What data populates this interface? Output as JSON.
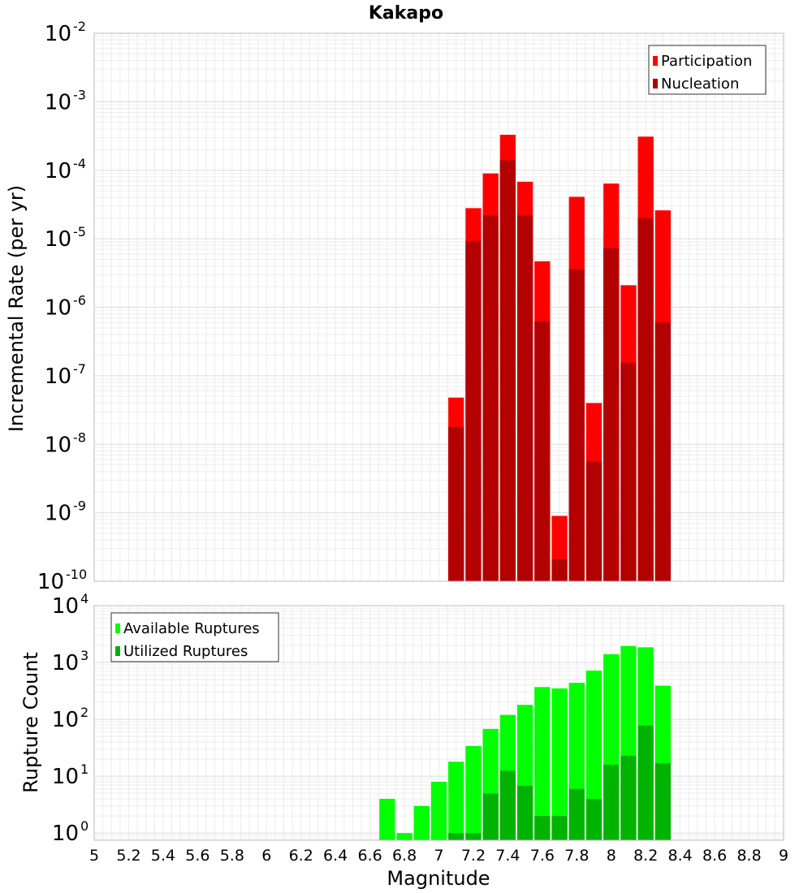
{
  "chart_data": [
    {
      "type": "bar",
      "title": "Kakapo",
      "xlabel": "",
      "ylabel": "Incremental Rate (per yr)",
      "yscale": "log",
      "ylim": [
        1e-10,
        0.01
      ],
      "xlim": [
        5,
        9
      ],
      "grid": true,
      "legend_position": "top-right",
      "x": [
        7.1,
        7.2,
        7.3,
        7.4,
        7.5,
        7.6,
        7.7,
        7.8,
        7.9,
        8.0,
        8.1,
        8.2,
        8.3
      ],
      "series": [
        {
          "name": "Participation",
          "color": "#ff0000",
          "values": [
            4.8e-08,
            2.8e-05,
            9e-05,
            0.00033,
            6.8e-05,
            4.7e-06,
            9e-10,
            4.1e-05,
            4e-08,
            6.4e-05,
            2.1e-06,
            0.00031,
            2.6e-05
          ]
        },
        {
          "name": "Nucleation",
          "color": "#b30000",
          "values": [
            1.8e-08,
            9.3e-06,
            2.2e-05,
            0.00014,
            2.2e-05,
            6.2e-07,
            2.1e-10,
            3.6e-06,
            5.6e-09,
            7.3e-06,
            1.55e-07,
            2e-05,
            6e-07
          ]
        }
      ]
    },
    {
      "type": "bar",
      "title": "",
      "xlabel": "Magnitude",
      "ylabel": "Rupture Count",
      "yscale": "log",
      "ylim": [
        0.75,
        10000
      ],
      "xlim": [
        5,
        9
      ],
      "grid": true,
      "legend_position": "top-left",
      "x_ticks": [
        "5",
        "5.2",
        "5.4",
        "5.6",
        "5.8",
        "6",
        "6.2",
        "6.4",
        "6.6",
        "6.8",
        "7",
        "7.2",
        "7.4",
        "7.6",
        "7.8",
        "8",
        "8.2",
        "8.4",
        "8.6",
        "8.8",
        "9"
      ],
      "x": [
        6.7,
        6.8,
        6.9,
        7.0,
        7.1,
        7.2,
        7.3,
        7.4,
        7.5,
        7.6,
        7.7,
        7.8,
        7.9,
        8.0,
        8.1,
        8.2,
        8.3
      ],
      "series": [
        {
          "name": "Available Ruptures",
          "color": "#00ff00",
          "values": [
            4,
            1,
            3,
            8,
            18,
            34,
            68,
            120,
            180,
            370,
            350,
            440,
            720,
            1400,
            1950,
            1850,
            390
          ]
        },
        {
          "name": "Utilized Ruptures",
          "color": "#00b300",
          "values": [
            0,
            0,
            0,
            0,
            1,
            1,
            5,
            12.5,
            6.8,
            2,
            2,
            6,
            4,
            16,
            23,
            78,
            17
          ]
        }
      ]
    }
  ]
}
